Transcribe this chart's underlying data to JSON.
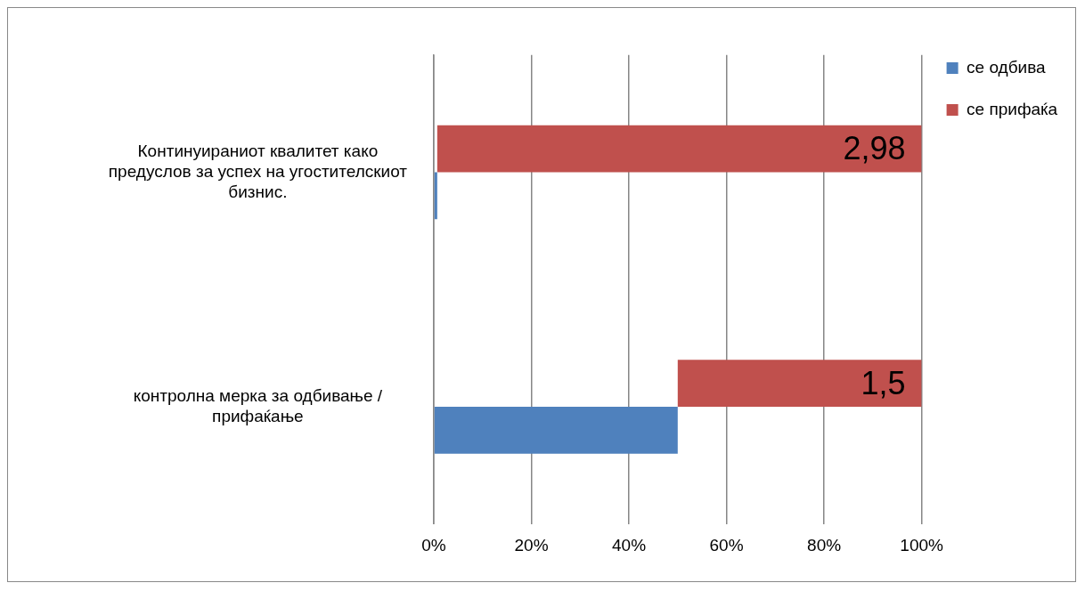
{
  "chart_data": {
    "type": "bar",
    "orientation": "horizontal",
    "categories": [
      "Континуираниот квалитет како предуслов за успех на угостителскиот бизнис.",
      "контролна мерка за одбивање / прифаќање"
    ],
    "series": [
      {
        "name": "се одбива",
        "color": "#4f81bd",
        "values": [
          0.7,
          50
        ]
      },
      {
        "name": "се прифаќа",
        "color": "#c0504d",
        "values": [
          99.3,
          50
        ],
        "base": [
          0.7,
          50
        ]
      }
    ],
    "annotations": [
      {
        "text": "2,98",
        "x": 100,
        "y": "Континуираниот квалитет како предуслов за успех на угостителскиот бизнис."
      },
      {
        "text": "1,5",
        "x": 100,
        "y": "контролна мерка за одбивање / прифаќање"
      }
    ],
    "xlim": [
      0,
      100
    ],
    "xticks": [
      {
        "value": 0,
        "label": "0%"
      },
      {
        "value": 20,
        "label": "20%"
      },
      {
        "value": 40,
        "label": "40%"
      },
      {
        "value": 60,
        "label": "60%"
      },
      {
        "value": 80,
        "label": "80%"
      },
      {
        "value": 100,
        "label": "100%"
      }
    ],
    "grid": "x",
    "legend": "right"
  }
}
